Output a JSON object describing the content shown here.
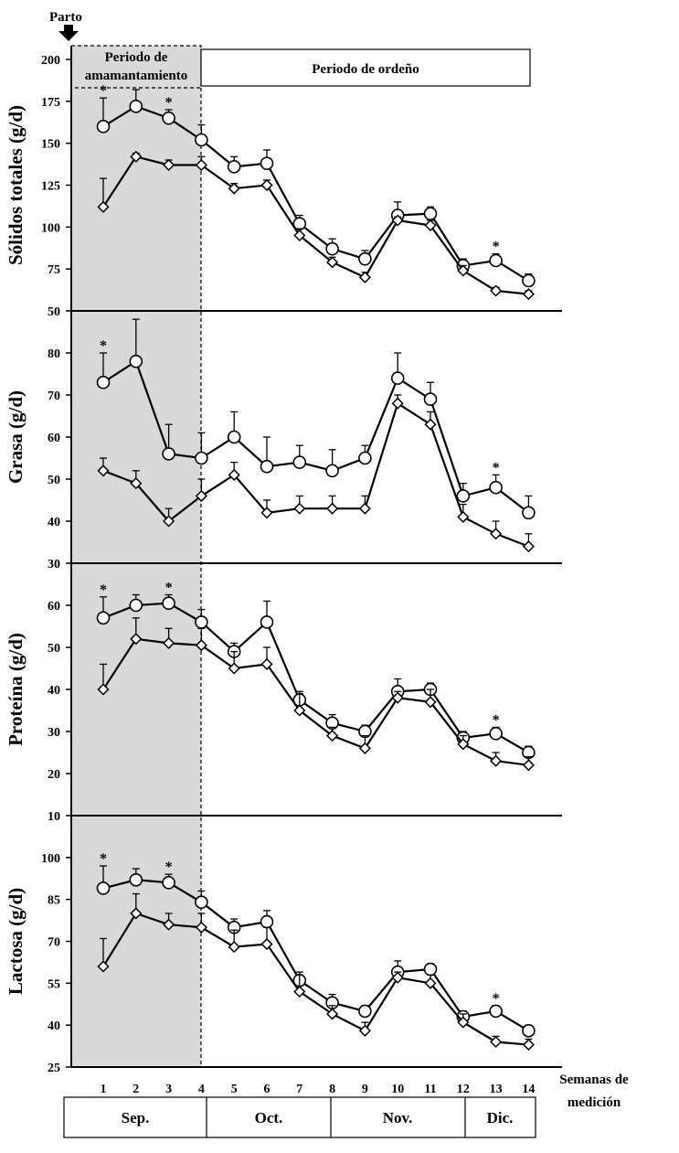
{
  "figure": {
    "start_label": "Parto",
    "period_nursing_line1": "Periodo de",
    "period_nursing_line2": "amamantamiento",
    "period_milking": "Periodo de ordeño",
    "xlabel_line1": "Semanas de",
    "xlabel_line2": "medición",
    "months": [
      "Sep.",
      "Oct.",
      "Nov.",
      "Dic."
    ],
    "colors": {
      "line": "#000000",
      "shade": "#d9d9d9",
      "marker_fill": "#ffffff"
    }
  },
  "chart_data": [
    {
      "type": "line",
      "ylabel": "Sólidos totales (g/d)",
      "x": [
        1,
        2,
        3,
        4,
        5,
        6,
        7,
        8,
        9,
        10,
        11,
        12,
        13,
        14
      ],
      "ylim": [
        50,
        200
      ],
      "yticks": [
        50,
        75,
        100,
        125,
        150,
        175,
        200
      ],
      "series": [
        {
          "marker": "circle",
          "values": [
            160,
            172,
            165,
            152,
            136,
            138,
            102,
            87,
            81,
            107,
            108,
            77,
            80,
            68
          ],
          "errors": [
            17,
            10,
            5,
            9,
            6,
            8,
            5,
            6,
            5,
            8,
            4,
            4,
            4,
            4
          ]
        },
        {
          "marker": "diamond",
          "values": [
            112,
            142,
            137,
            137,
            123,
            125,
            95,
            79,
            70,
            104,
            101,
            74,
            62,
            60
          ],
          "errors": [
            17,
            2,
            3,
            5,
            3,
            3,
            4,
            3,
            3,
            2,
            3,
            3,
            2,
            2
          ]
        }
      ],
      "significant_weeks": [
        1,
        3,
        13
      ]
    },
    {
      "type": "line",
      "ylabel": "Grasa (g/d)",
      "x": [
        1,
        2,
        3,
        4,
        5,
        6,
        7,
        8,
        9,
        10,
        11,
        12,
        13,
        14
      ],
      "ylim": [
        30,
        90
      ],
      "yticks": [
        30,
        40,
        50,
        60,
        70,
        80
      ],
      "series": [
        {
          "marker": "circle",
          "values": [
            73,
            78,
            56,
            55,
            60,
            53,
            54,
            52,
            55,
            74,
            69,
            46,
            48,
            42
          ],
          "errors": [
            7,
            10,
            7,
            6,
            6,
            7,
            4,
            5,
            3,
            6,
            4,
            3,
            3,
            4
          ]
        },
        {
          "marker": "diamond",
          "values": [
            52,
            49,
            40,
            46,
            51,
            42,
            43,
            43,
            43,
            68,
            63,
            41,
            37,
            34
          ],
          "errors": [
            3,
            3,
            3,
            4,
            3,
            3,
            3,
            3,
            3,
            2,
            3,
            3,
            3,
            3
          ]
        }
      ],
      "significant_weeks": [
        1,
        13
      ]
    },
    {
      "type": "line",
      "ylabel": "Proteína (g/d)",
      "x": [
        1,
        2,
        3,
        4,
        5,
        6,
        7,
        8,
        9,
        10,
        11,
        12,
        13,
        14
      ],
      "ylim": [
        10,
        70
      ],
      "yticks": [
        10,
        20,
        30,
        40,
        50,
        60
      ],
      "series": [
        {
          "marker": "circle",
          "values": [
            57,
            60,
            60.5,
            56,
            49,
            56,
            37.5,
            32,
            30,
            39.5,
            40,
            28.5,
            29.5,
            25
          ],
          "errors": [
            5,
            2.5,
            2,
            3,
            2,
            5,
            2,
            2,
            1.5,
            3,
            1.5,
            1.5,
            1.5,
            1.5
          ]
        },
        {
          "marker": "diamond",
          "values": [
            40,
            52,
            51,
            50.5,
            45,
            46,
            35,
            29,
            26,
            38,
            37,
            27,
            23,
            22
          ],
          "errors": [
            6,
            5,
            3.5,
            4,
            4,
            4,
            4,
            2,
            3,
            1.5,
            3,
            2,
            2,
            2
          ]
        }
      ],
      "significant_weeks": [
        1,
        3,
        13
      ]
    },
    {
      "type": "line",
      "ylabel": "Lactosa (g/d)",
      "x": [
        1,
        2,
        3,
        4,
        5,
        6,
        7,
        8,
        9,
        10,
        11,
        12,
        13,
        14
      ],
      "ylim": [
        25,
        115
      ],
      "yticks": [
        25,
        40,
        55,
        70,
        85,
        100
      ],
      "series": [
        {
          "marker": "circle",
          "values": [
            89,
            92,
            91,
            84,
            75,
            77,
            56,
            48,
            45,
            59,
            60,
            43,
            45,
            38
          ],
          "errors": [
            8,
            4,
            3,
            4,
            3,
            4,
            3,
            3,
            2,
            4,
            2,
            2,
            2,
            2
          ]
        },
        {
          "marker": "diamond",
          "values": [
            61,
            80,
            76,
            75,
            68,
            69,
            52,
            44,
            38,
            57,
            55,
            41,
            34,
            33
          ],
          "errors": [
            10,
            7,
            4,
            5,
            6,
            6,
            6,
            3,
            3,
            2,
            3,
            3,
            2,
            2
          ]
        }
      ],
      "significant_weeks": [
        1,
        3,
        13
      ]
    }
  ]
}
